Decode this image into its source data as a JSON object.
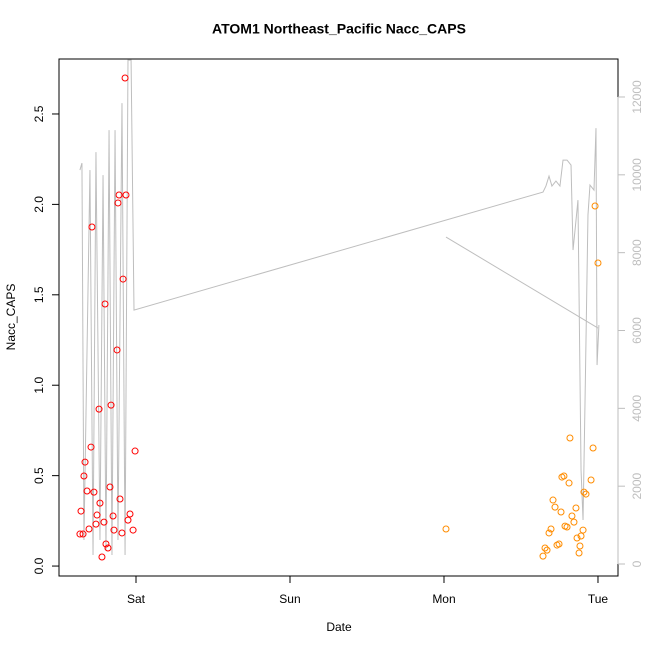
{
  "chart_data": {
    "type": "scatter",
    "title": "ATOM1 Northeast_Pacific Nacc_CAPS",
    "xlabel": "Date",
    "ylabel": "Nacc_CAPS",
    "xlim": [
      -0.5,
      3.13
    ],
    "xticks": [
      {
        "value": 0,
        "label": "Sat"
      },
      {
        "value": 1,
        "label": "Sun"
      },
      {
        "value": 2,
        "label": "Mon"
      },
      {
        "value": 3,
        "label": "Tue"
      }
    ],
    "ylim": [
      -0.055,
      2.804
    ],
    "yticks": [
      {
        "value": 0,
        "label": "0.0"
      },
      {
        "value": 0.5,
        "label": "0.5"
      },
      {
        "value": 1,
        "label": "1.0"
      },
      {
        "value": 1.5,
        "label": "1.5"
      },
      {
        "value": 2,
        "label": "2.0"
      },
      {
        "value": 2.5,
        "label": "2.5"
      }
    ],
    "y2lim": [
      -308,
      12976
    ],
    "y2ticks": [
      0,
      2000,
      4000,
      6000,
      8000,
      10000,
      12000
    ],
    "series": [
      {
        "type": "line",
        "axis": "y2",
        "color": "#bebebe",
        "x": [
          -0.364,
          -0.351,
          -0.338,
          -0.299,
          -0.279,
          -0.26,
          -0.234,
          -0.214,
          -0.195,
          -0.175,
          -0.156,
          -0.136,
          -0.117,
          -0.091,
          -0.071,
          -0.052,
          -0.032,
          -0.013,
          2.643,
          2.662,
          2.682,
          2.701,
          2.727,
          2.753,
          2.773,
          2.799,
          2.825,
          2.838,
          2.851,
          2.87,
          2.89,
          2.903,
          2.916,
          2.935,
          2.948,
          2.974,
          2.987,
          2.994,
          3.006,
          null,
          2.013,
          3.0
        ],
        "values": [
          10122,
          10302,
          617,
          10122,
          231,
          10584,
          617,
          9993,
          360,
          11149,
          231,
          11149,
          617,
          11843,
          231,
          12948,
          12948,
          6525,
          9557,
          9711,
          9968,
          9711,
          9839,
          9711,
          10379,
          10379,
          10250,
          8067,
          8580,
          9351,
          2415,
          1130,
          4213,
          8966,
          9737,
          9608,
          11201,
          5112,
          6140,
          null,
          8401,
          6063
        ]
      },
      {
        "type": "scatter",
        "color": "#ff0000",
        "x": [
          -0.364,
          -0.344,
          -0.357,
          -0.338,
          -0.331,
          -0.318,
          -0.305,
          -0.292,
          -0.286,
          -0.273,
          -0.26,
          -0.253,
          -0.24,
          -0.234,
          -0.221,
          -0.208,
          -0.201,
          -0.195,
          -0.182,
          -0.169,
          -0.162,
          -0.149,
          -0.143,
          -0.123,
          -0.117,
          -0.11,
          -0.104,
          -0.091,
          -0.084,
          -0.071,
          -0.065,
          -0.052,
          -0.039,
          -0.019,
          -0.006
        ],
        "values": [
          0.177,
          0.177,
          0.304,
          0.498,
          0.575,
          0.415,
          0.205,
          0.658,
          1.875,
          0.409,
          0.232,
          0.282,
          0.868,
          0.348,
          0.05,
          0.243,
          1.449,
          0.122,
          0.1,
          0.437,
          0.89,
          0.277,
          0.199,
          1.195,
          2.008,
          2.052,
          0.371,
          0.183,
          1.587,
          2.699,
          2.052,
          0.254,
          0.288,
          0.199,
          0.636
        ]
      },
      {
        "type": "scatter",
        "color": "#ff8c00",
        "x": [
          2.013,
          2.643,
          2.656,
          2.669,
          2.682,
          2.695,
          2.708,
          2.721,
          2.734,
          2.747,
          2.76,
          2.766,
          2.779,
          2.786,
          2.799,
          2.812,
          2.818,
          2.831,
          2.844,
          2.857,
          2.864,
          2.877,
          2.883,
          2.89,
          2.903,
          2.909,
          2.922,
          2.955,
          2.968,
          2.981,
          3.0
        ],
        "values": [
          0.205,
          0.055,
          0.1,
          0.088,
          0.183,
          0.205,
          0.365,
          0.326,
          0.116,
          0.122,
          0.299,
          0.492,
          0.498,
          0.221,
          0.216,
          0.459,
          0.708,
          0.277,
          0.243,
          0.321,
          0.155,
          0.072,
          0.111,
          0.166,
          0.199,
          0.409,
          0.398,
          0.476,
          0.653,
          1.991,
          1.676
        ]
      }
    ]
  }
}
